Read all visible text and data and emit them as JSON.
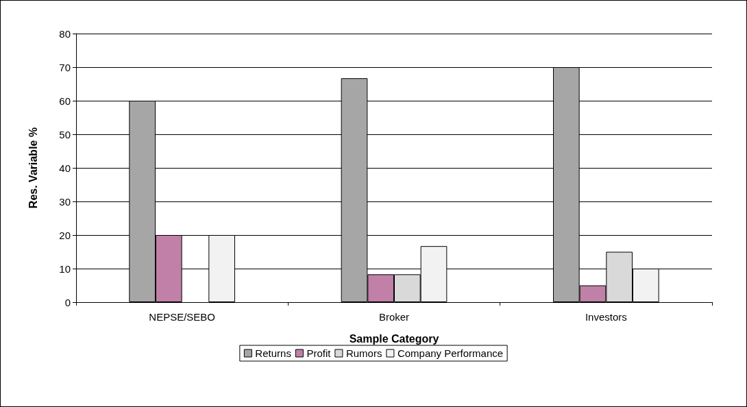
{
  "chart_data": {
    "type": "bar",
    "xlabel": "Sample Category",
    "ylabel": "Res. Variable %",
    "categories": [
      "NEPSE/SEBO",
      "Broker",
      "Investors"
    ],
    "series": [
      {
        "name": "Returns",
        "color": "#a6a6a6",
        "values": [
          60,
          66.7,
          70
        ]
      },
      {
        "name": "Profit",
        "color": "#c080a8",
        "values": [
          20,
          8.3,
          5
        ]
      },
      {
        "name": "Rumors",
        "color": "#d9d9d9",
        "values": [
          null,
          8.3,
          15
        ]
      },
      {
        "name": "Company Performance",
        "color": "#f2f2f2",
        "values": [
          20,
          16.7,
          10
        ]
      }
    ],
    "ylim": [
      0,
      80
    ],
    "yticks": [
      0,
      10,
      20,
      30,
      40,
      50,
      60,
      70,
      80
    ],
    "grid": "y",
    "legend": "bottom"
  }
}
